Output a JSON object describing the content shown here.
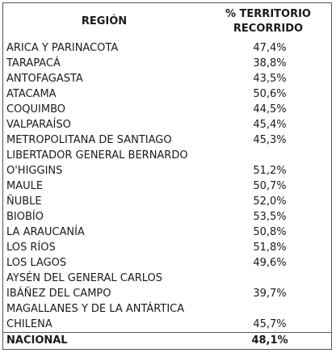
{
  "table": {
    "header": [
      [
        "REGIÓN"
      ],
      [
        "% TERRITORIO",
        "RECORRIDO"
      ]
    ],
    "rows": [
      [
        [
          "ARICA Y PARINACOTA"
        ],
        "47,4%"
      ],
      [
        [
          "TARAPACÁ"
        ],
        "38,8%"
      ],
      [
        [
          "ANTOFAGASTA"
        ],
        "43,5%"
      ],
      [
        [
          "ATACAMA"
        ],
        "50,6%"
      ],
      [
        [
          "COQUIMBO"
        ],
        "44,5%"
      ],
      [
        [
          "VALPARAÍSO"
        ],
        "45,4%"
      ],
      [
        [
          "METROPOLITANA DE SANTIAGO"
        ],
        "45,3%"
      ],
      [
        [
          "LIBERTADOR GENERAL BERNARDO",
          "O'HIGGINS"
        ],
        "51,2%"
      ],
      [
        [
          "MAULE"
        ],
        "50,7%"
      ],
      [
        [
          "ÑUBLE"
        ],
        "52,0%"
      ],
      [
        [
          "BIOBÍO"
        ],
        "53,5%"
      ],
      [
        [
          "LA ARAUCANÍA"
        ],
        "50,8%"
      ],
      [
        [
          "LOS RÍOS"
        ],
        "51,8%"
      ],
      [
        [
          "LOS LAGOS"
        ],
        "49,6%"
      ],
      [
        [
          "AYSÉN DEL GENERAL CARLOS",
          "IBÁÑEZ DEL CAMPO"
        ],
        "39,7%"
      ],
      [
        [
          "MAGALLANES Y DE LA ANTÁRTICA",
          "CHILENA"
        ],
        "45,7%"
      ]
    ],
    "total": [
      [
        "NACIONAL"
      ],
      "48,1%"
    ]
  }
}
